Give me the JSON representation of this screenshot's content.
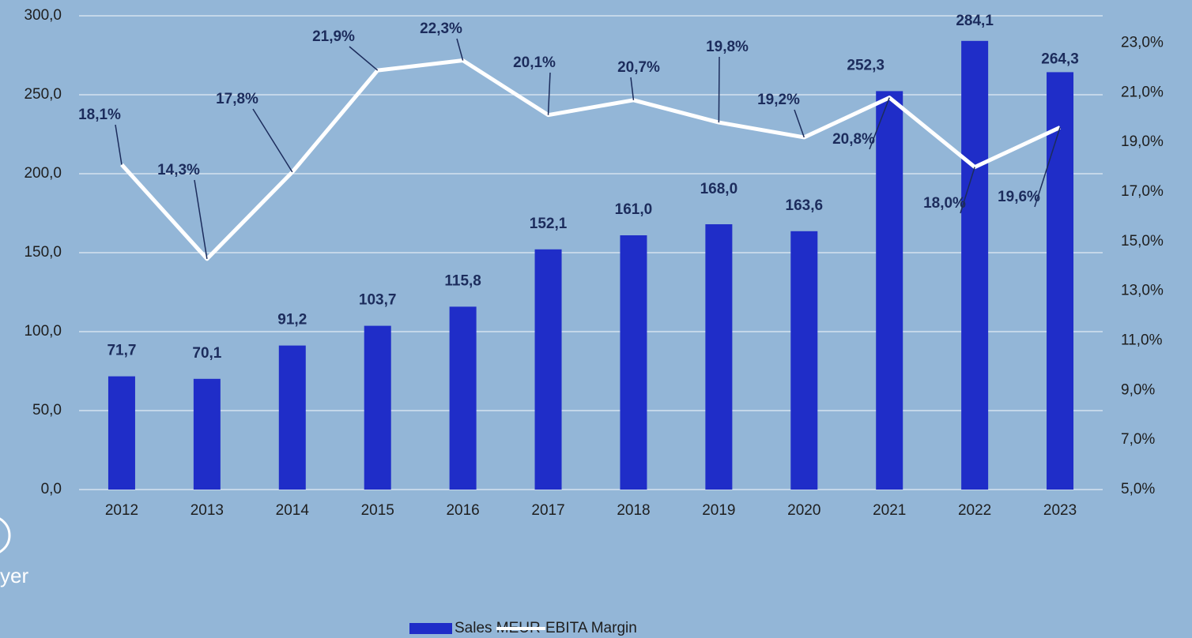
{
  "chart_data": {
    "type": "bar_line",
    "categories": [
      "2012",
      "2013",
      "2014",
      "2015",
      "2016",
      "2017",
      "2018",
      "2019",
      "2020",
      "2021",
      "2022",
      "2023"
    ],
    "series": [
      {
        "name": "Sales MEUR",
        "type": "bar",
        "color": "#1f2dc8",
        "values": [
          71.7,
          70.1,
          91.2,
          103.7,
          115.8,
          152.1,
          161.0,
          168.0,
          163.6,
          252.3,
          284.1,
          264.3
        ],
        "value_labels": [
          "71,7",
          "70,1",
          "91,2",
          "103,7",
          "115,8",
          "152,1",
          "161,0",
          "168,0",
          "163,6",
          "252,3",
          "284,1",
          "264,3"
        ]
      },
      {
        "name": "EBITA Margin",
        "type": "line",
        "axis": "y2",
        "color": "#ffffff",
        "values": [
          18.1,
          14.3,
          17.8,
          21.9,
          22.3,
          20.1,
          20.7,
          19.8,
          19.2,
          20.8,
          18.0,
          19.6
        ],
        "value_labels": [
          "18,1%",
          "14,3%",
          "17,8%",
          "21,9%",
          "22,3%",
          "20,1%",
          "20,7%",
          "19,8%",
          "19,2%",
          "20,8%",
          "18,0%",
          "19,6%"
        ]
      }
    ],
    "ylim": [
      0,
      300
    ],
    "yticks": [
      {
        "value": 0,
        "label": "0,0"
      },
      {
        "value": 50,
        "label": "50,0"
      },
      {
        "value": 100,
        "label": "100,0"
      },
      {
        "value": 150,
        "label": "150,0"
      },
      {
        "value": 200,
        "label": "200,0"
      },
      {
        "value": 250,
        "label": "250,0"
      },
      {
        "value": 300,
        "label": "300,0"
      }
    ],
    "y2lim": [
      5,
      24.1
    ],
    "y2ticks": [
      {
        "value": 5,
        "label": "5,0%"
      },
      {
        "value": 7,
        "label": "7,0%"
      },
      {
        "value": 9,
        "label": "9,0%"
      },
      {
        "value": 11,
        "label": "11,0%"
      },
      {
        "value": 13,
        "label": "13,0%"
      },
      {
        "value": 15,
        "label": "15,0%"
      },
      {
        "value": 17,
        "label": "17,0%"
      },
      {
        "value": 19,
        "label": "19,0%"
      },
      {
        "value": 21,
        "label": "21,0%"
      },
      {
        "value": 23,
        "label": "23,0%"
      }
    ],
    "grid": true,
    "legend": "bottom",
    "annotations": [
      "yer"
    ]
  }
}
